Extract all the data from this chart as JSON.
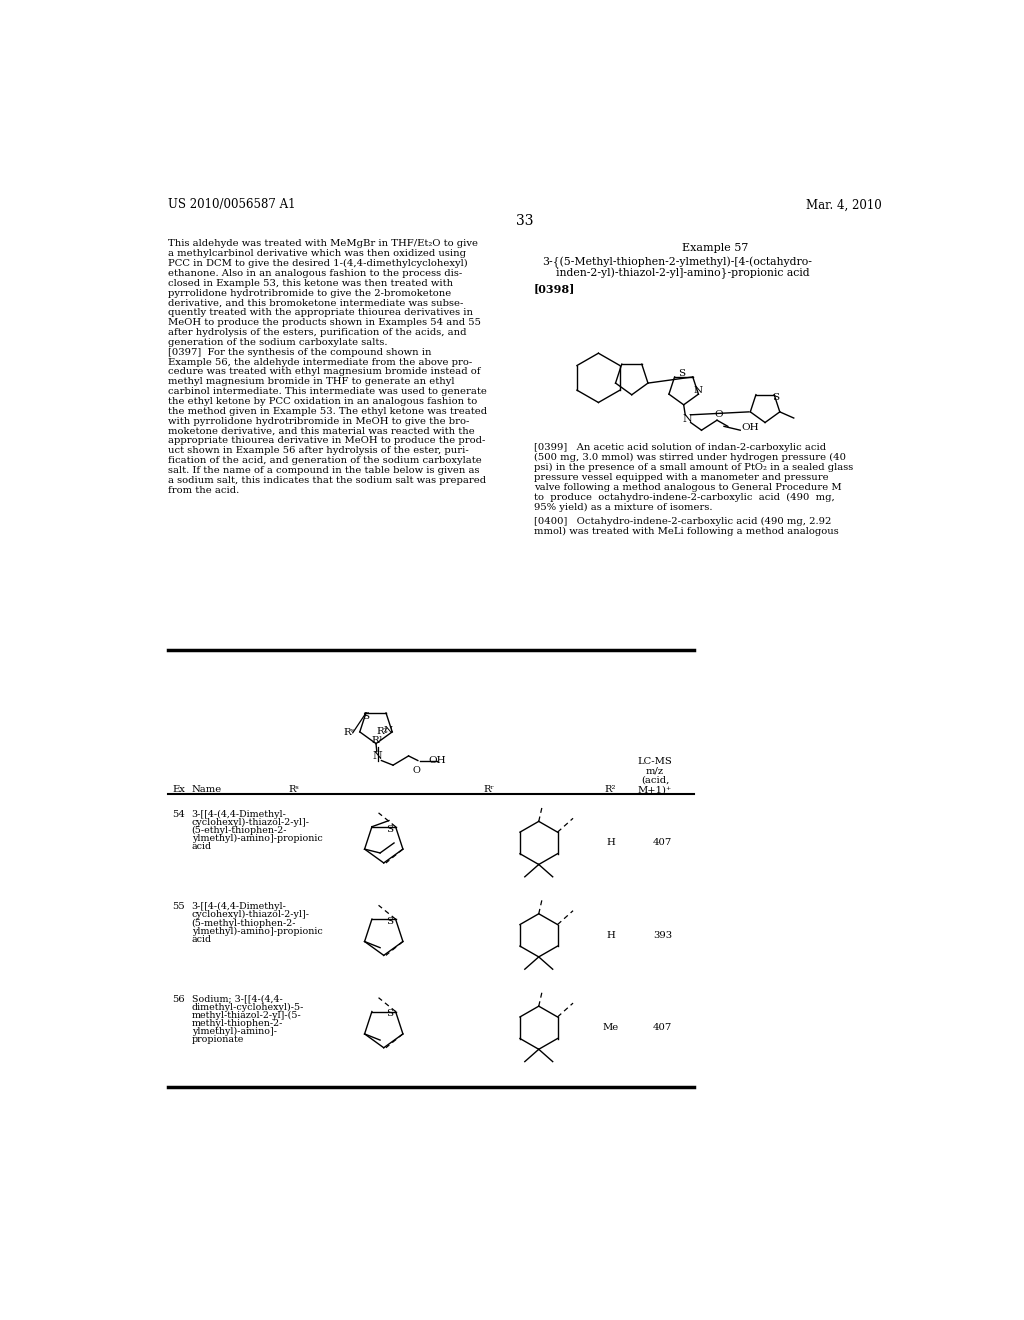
{
  "bg_color": "#ffffff",
  "header_left": "US 2010/0056587 A1",
  "header_right": "Mar. 4, 2010",
  "page_number": "33",
  "left_col_text": [
    "This aldehyde was treated with MeMgBr in THF/Et₂O to give",
    "a methylcarbinol derivative which was then oxidized using",
    "PCC in DCM to give the desired 1-(4,4-dimethylcyclohexyl)",
    "ethanone. Also in an analogous fashion to the process dis-",
    "closed in Example 53, this ketone was then treated with",
    "pyrrolidone hydrotribromide to give the 2-bromoketone",
    "derivative, and this bromoketone intermediate was subse-",
    "quently treated with the appropriate thiourea derivatives in",
    "MeOH to produce the products shown in Examples 54 and 55",
    "after hydrolysis of the esters, purification of the acids, and",
    "generation of the sodium carboxylate salts.",
    "[0397]  For the synthesis of the compound shown in",
    "Example 56, the aldehyde intermediate from the above pro-",
    "cedure was treated with ethyl magnesium bromide instead of",
    "methyl magnesium bromide in THF to generate an ethyl",
    "carbinol intermediate. This intermediate was used to generate",
    "the ethyl ketone by PCC oxidation in an analogous fashion to",
    "the method given in Example 53. The ethyl ketone was treated",
    "with pyrrolidone hydrotribromide in MeOH to give the bro-",
    "moketone derivative, and this material was reacted with the",
    "appropriate thiourea derivative in MeOH to produce the prod-",
    "uct shown in Example 56 after hydrolysis of the ester, puri-",
    "fication of the acid, and generation of the sodium carboxylate",
    "salt. If the name of a compound in the table below is given as",
    "a sodium salt, this indicates that the sodium salt was prepared",
    "from the acid."
  ],
  "example57_label": "Example 57",
  "example57_title1": "3-{(5-Methyl-thiophen-2-ylmethyl)-[4-(octahydro-",
  "example57_title2": "    inden-2-yl)-thiazol-2-yl]-amino}-propionic acid",
  "para0398": "[0398]",
  "para0399_lines": [
    "[0399]   An acetic acid solution of indan-2-carboxylic acid",
    "(500 mg, 3.0 mmol) was stirred under hydrogen pressure (40",
    "psi) in the presence of a small amount of PtO₂ in a sealed glass",
    "pressure vessel equipped with a manometer and pressure",
    "valve following a method analogous to General Procedure M",
    "to  produce  octahydro-indene-2-carboxylic  acid  (490  mg,",
    "95% yield) as a mixture of isomers."
  ],
  "para0400_lines": [
    "[0400]   Octahydro-indene-2-carboxylic acid (490 mg, 2.92",
    "mmol) was treated with MeLi following a method analogous"
  ],
  "table_rows": [
    {
      "ex": "54",
      "name_lines": [
        "3-[[4-(4,4-Dimethyl-",
        "cyclohexyl)-thiazol-2-yl]-",
        "(5-ethyl-thiophen-2-",
        "ylmethyl)-amino]-propionic",
        "acid"
      ],
      "r2_val": "H",
      "lcms": "407",
      "thiophen_ethyl": true
    },
    {
      "ex": "55",
      "name_lines": [
        "3-[[4-(4,4-Dimethyl-",
        "cyclohexyl)-thiazol-2-yl]-",
        "(5-methyl-thiophen-2-",
        "ylmethyl)-amino]-propionic",
        "acid"
      ],
      "r2_val": "H",
      "lcms": "393",
      "thiophen_ethyl": false
    },
    {
      "ex": "56",
      "name_lines": [
        "Sodium; 3-[[4-(4,4-",
        "dimethyl-cyclohexyl)-5-",
        "methyl-thiazol-2-yl]-(5-",
        "methyl-thiophen-2-",
        "ylmethyl)-amino]-",
        "propionate"
      ],
      "r2_val": "Me",
      "lcms": "407",
      "thiophen_ethyl": false
    }
  ]
}
